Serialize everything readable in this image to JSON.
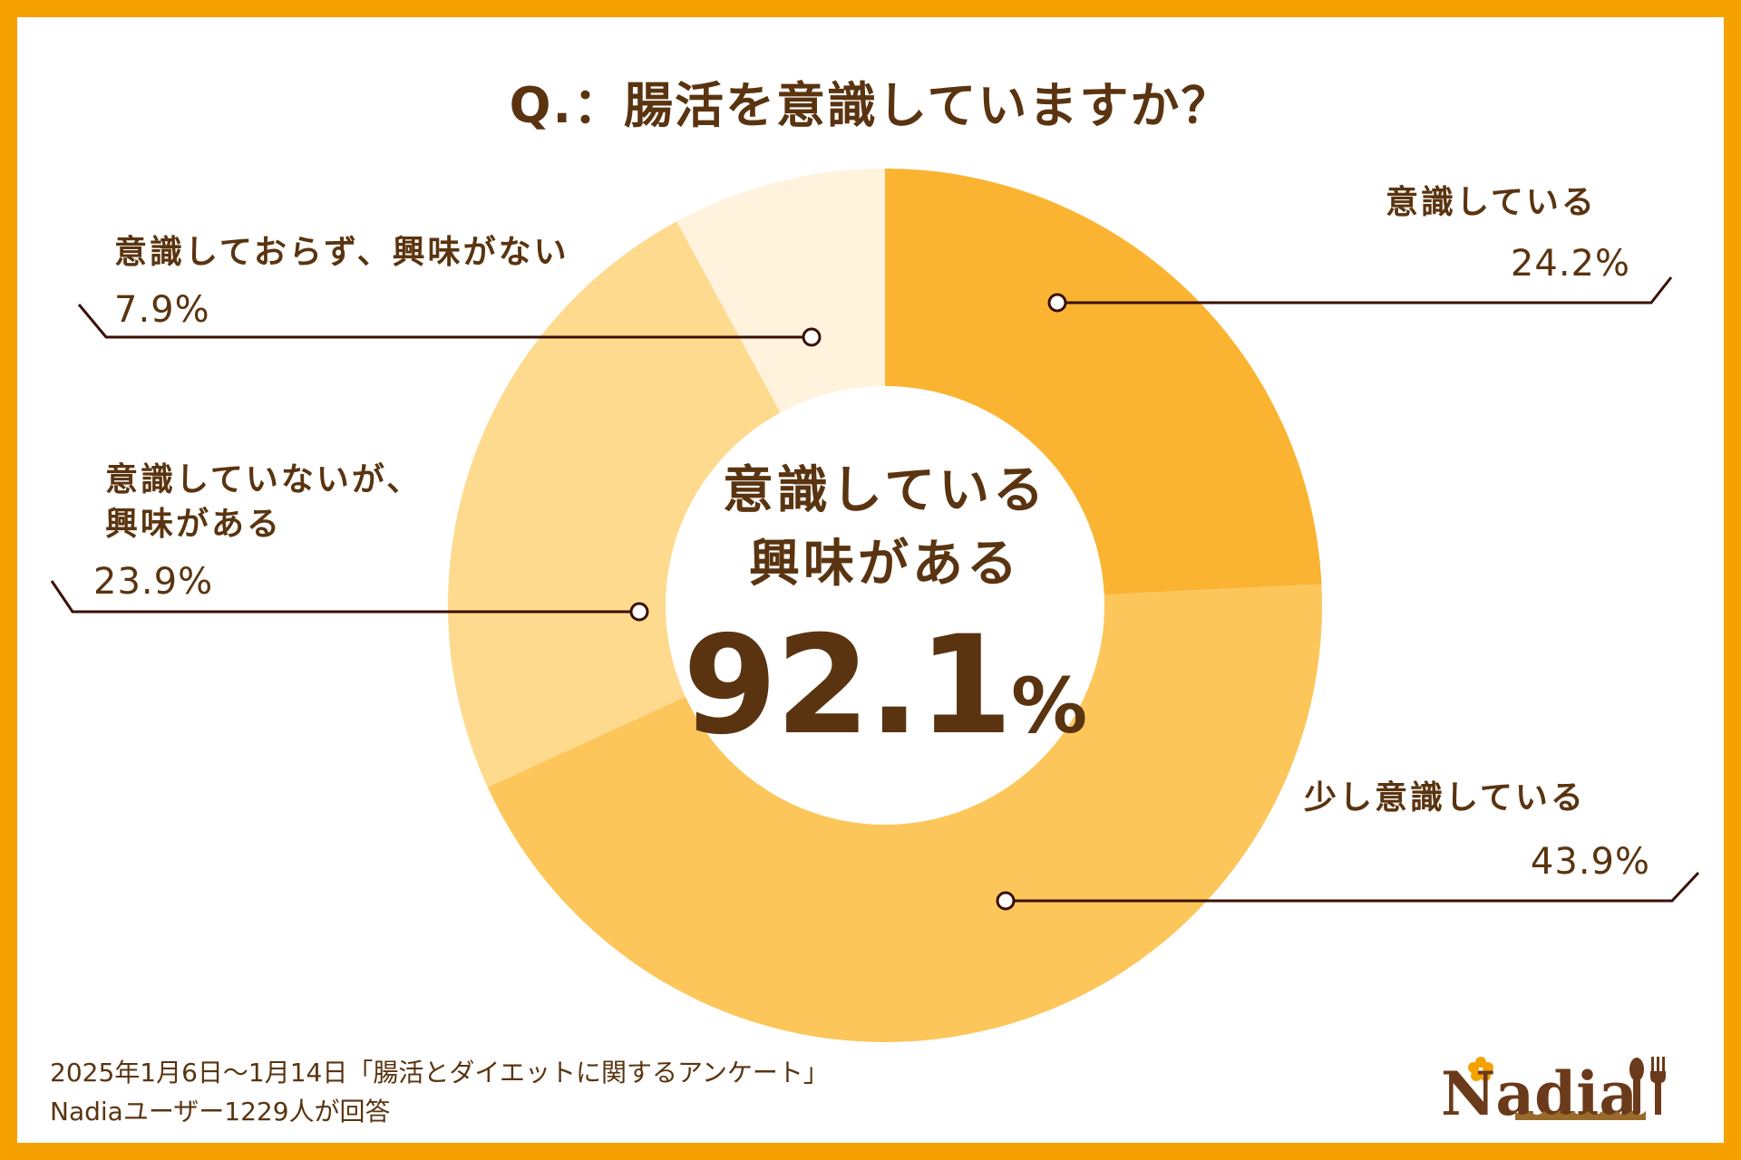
{
  "title": "Q.：腸活を意識していますか？",
  "center": {
    "line1": "意識している",
    "line2": "興味がある",
    "value": "92.1",
    "unit": "%"
  },
  "labels": [
    {
      "name": "意識している",
      "pct": "24.2%"
    },
    {
      "name": "少し意識している",
      "pct": "43.9%"
    },
    {
      "name_line1": "意識していないが、",
      "name_line2": "興味がある",
      "pct": "23.9%"
    },
    {
      "name": "意識しておらず、興味がない",
      "pct": "7.9%"
    }
  ],
  "footer": {
    "line1": "2025年1月6日～1月14日「腸活とダイエットに関するアンケート」",
    "line2": "Nadiaユーザー1229人が回答"
  },
  "logo": {
    "text": "Nadia"
  },
  "colors": {
    "border": "#F5A200",
    "text": "#5A3410",
    "leader": "#3A0F00",
    "segments": [
      "#FAB432",
      "#FDC65A",
      "#FDDA8E",
      "#FFF3DE"
    ]
  },
  "chart_data": {
    "type": "pie",
    "variant": "donut",
    "title": "Q.：腸活を意識していますか？",
    "categories": [
      "意識している",
      "少し意識している",
      "意識していないが、興味がある",
      "意識しておらず、興味がない"
    ],
    "values": [
      24.2,
      43.9,
      23.9,
      7.9
    ],
    "unit": "%",
    "start_angle": "12 o'clock, clockwise",
    "center_annotation": "意識している 興味がある 92.1%",
    "legend": "none (leader-line labels)"
  }
}
